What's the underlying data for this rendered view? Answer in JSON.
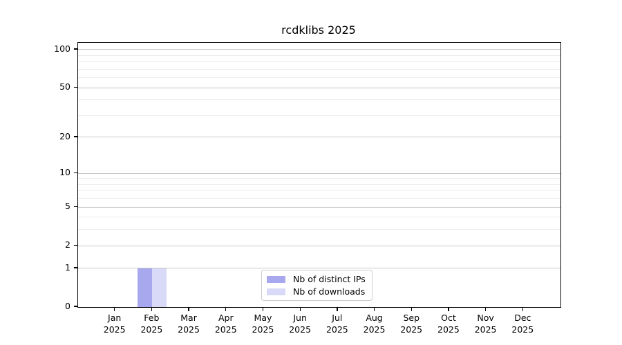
{
  "title": "rcdklibs 2025",
  "chart_data": {
    "type": "bar",
    "title": "rcdklibs 2025",
    "categories": [
      {
        "month": "Jan",
        "year": "2025"
      },
      {
        "month": "Feb",
        "year": "2025"
      },
      {
        "month": "Mar",
        "year": "2025"
      },
      {
        "month": "Apr",
        "year": "2025"
      },
      {
        "month": "May",
        "year": "2025"
      },
      {
        "month": "Jun",
        "year": "2025"
      },
      {
        "month": "Jul",
        "year": "2025"
      },
      {
        "month": "Aug",
        "year": "2025"
      },
      {
        "month": "Sep",
        "year": "2025"
      },
      {
        "month": "Oct",
        "year": "2025"
      },
      {
        "month": "Nov",
        "year": "2025"
      },
      {
        "month": "Dec",
        "year": "2025"
      }
    ],
    "series": [
      {
        "name": "Nb of distinct IPs",
        "color": "#a8a8ef",
        "values": [
          0,
          1,
          0,
          0,
          0,
          0,
          0,
          0,
          0,
          0,
          0,
          0
        ]
      },
      {
        "name": "Nb of downloads",
        "color": "#d9d9f8",
        "values": [
          0,
          1,
          0,
          0,
          0,
          0,
          0,
          0,
          0,
          0,
          0,
          0
        ]
      }
    ],
    "y_axis": {
      "scale": "log1p",
      "ticks": [
        0,
        1,
        2,
        5,
        10,
        20,
        50,
        100
      ],
      "minor_gridlines": [
        3,
        4,
        6,
        7,
        8,
        9,
        30,
        40,
        60,
        70,
        80,
        90
      ],
      "max": 113.3,
      "label": ""
    },
    "x_axis": {
      "label": ""
    },
    "grid": {
      "major_color": "#c6c6c6",
      "minor_color": "#ededed"
    },
    "legend": {
      "position": "lower center"
    },
    "colors": {
      "spine": "#000000",
      "background": "#ffffff",
      "text": "#000000"
    }
  }
}
